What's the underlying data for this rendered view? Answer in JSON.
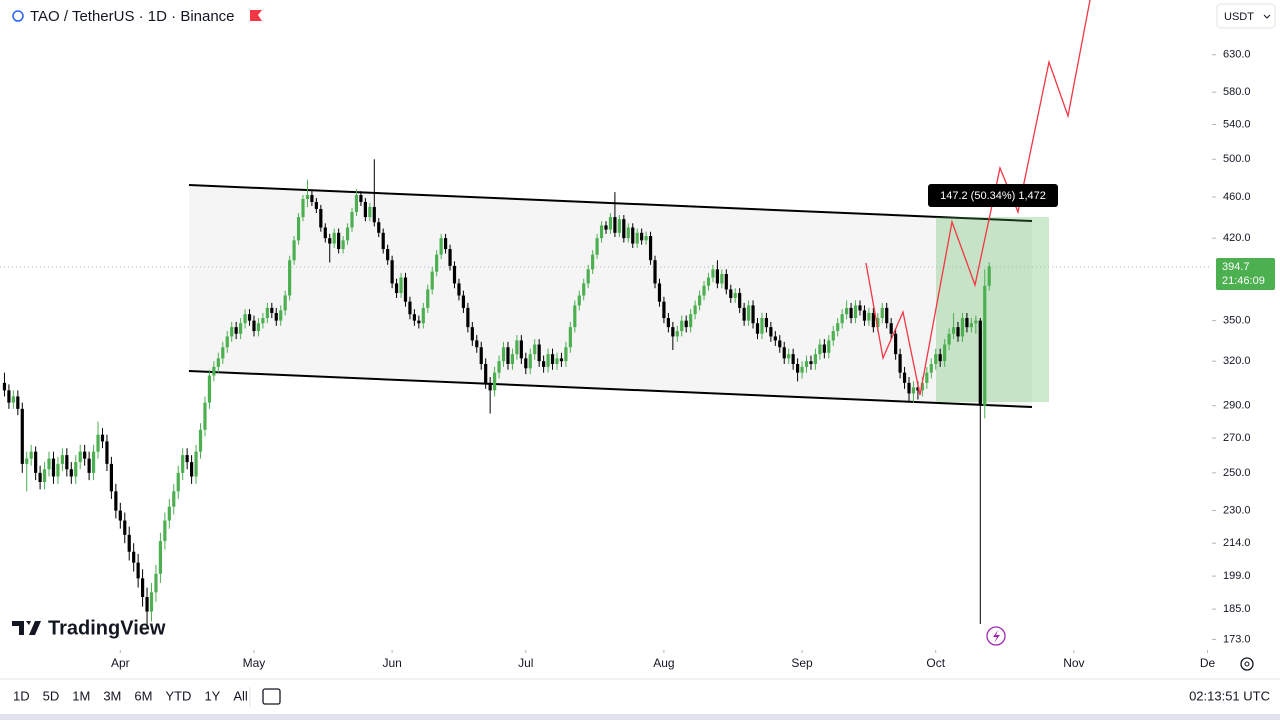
{
  "ui": {
    "symbol": "TAO / TetherUS · 1D · Binance",
    "currency": "USDT",
    "logo": "TradingView",
    "timeframes": [
      "1D",
      "5D",
      "1M",
      "3M",
      "6M",
      "YTD",
      "1Y",
      "All"
    ],
    "clock": "02:13:51 UTC",
    "measure_label": "147.2 (50.34%) 1,472"
  },
  "chart_data": {
    "type": "candlestick",
    "log_scale": true,
    "up_color": "#4caf50",
    "down_color": "#000000",
    "countdown": "21:46:09",
    "xlim": [
      -1,
      271
    ],
    "xticks": [
      {
        "value": 26,
        "label": "Apr"
      },
      {
        "value": 56,
        "label": "May"
      },
      {
        "value": 87,
        "label": "Jun"
      },
      {
        "value": 117,
        "label": "Jul"
      },
      {
        "value": 148,
        "label": "Aug"
      },
      {
        "value": 179,
        "label": "Sep"
      },
      {
        "value": 209,
        "label": "Oct"
      },
      {
        "value": 240,
        "label": "Nov"
      },
      {
        "value": 270,
        "label": "De"
      }
    ],
    "ylim": [
      169,
      711
    ],
    "yticks": [
      {
        "value": 630,
        "label": "630.0"
      },
      {
        "value": 580,
        "label": "580.0"
      },
      {
        "value": 540,
        "label": "540.0"
      },
      {
        "value": 500,
        "label": "500.0"
      },
      {
        "value": 460,
        "label": "460.0"
      },
      {
        "value": 420,
        "label": "420.0"
      },
      {
        "value": 350,
        "label": "350.0"
      },
      {
        "value": 320,
        "label": "320.0"
      },
      {
        "value": 290,
        "label": "290.0"
      },
      {
        "value": 270,
        "label": "270.0"
      },
      {
        "value": 250,
        "label": "250.0"
      },
      {
        "value": 230,
        "label": "230.0"
      },
      {
        "value": 214,
        "label": "214.0"
      },
      {
        "value": 199,
        "label": "199.0"
      },
      {
        "value": 185,
        "label": "185.0"
      },
      {
        "value": 173,
        "label": "173.0"
      }
    ],
    "candles": [
      [
        305,
        312,
        296,
        300
      ],
      [
        300,
        304,
        288,
        292
      ],
      [
        292,
        300,
        288,
        296
      ],
      [
        296,
        300,
        284,
        288
      ],
      [
        288,
        292,
        250,
        255
      ],
      [
        255,
        262,
        240,
        258
      ],
      [
        258,
        266,
        254,
        262
      ],
      [
        262,
        265,
        246,
        250
      ],
      [
        250,
        254,
        241,
        245
      ],
      [
        245,
        256,
        241,
        252
      ],
      [
        252,
        262,
        248,
        258
      ],
      [
        258,
        262,
        244,
        248
      ],
      [
        248,
        259,
        244,
        255
      ],
      [
        255,
        264,
        251,
        260
      ],
      [
        260,
        264,
        248,
        252
      ],
      [
        252,
        256,
        244,
        248
      ],
      [
        248,
        260,
        244,
        256
      ],
      [
        256,
        266,
        252,
        262
      ],
      [
        262,
        266,
        254,
        258
      ],
      [
        258,
        262,
        246,
        250
      ],
      [
        250,
        266,
        246,
        262
      ],
      [
        262,
        280,
        258,
        272
      ],
      [
        272,
        276,
        264,
        268
      ],
      [
        268,
        272,
        251,
        255
      ],
      [
        255,
        259,
        236,
        240
      ],
      [
        240,
        244,
        226,
        230
      ],
      [
        230,
        234,
        221,
        225
      ],
      [
        225,
        229,
        214,
        218
      ],
      [
        218,
        222,
        206,
        210
      ],
      [
        210,
        214,
        201,
        205
      ],
      [
        205,
        209,
        194,
        198
      ],
      [
        198,
        202,
        186,
        190
      ],
      [
        190,
        194,
        178,
        184
      ],
      [
        184,
        196,
        180,
        192
      ],
      [
        192,
        204,
        188,
        200
      ],
      [
        200,
        219,
        196,
        215
      ],
      [
        215,
        229,
        211,
        225
      ],
      [
        225,
        236,
        221,
        232
      ],
      [
        232,
        244,
        228,
        240
      ],
      [
        240,
        254,
        236,
        250
      ],
      [
        250,
        264,
        246,
        260
      ],
      [
        260,
        264,
        252,
        256
      ],
      [
        256,
        260,
        244,
        248
      ],
      [
        248,
        266,
        244,
        262
      ],
      [
        262,
        279,
        258,
        275
      ],
      [
        275,
        296,
        271,
        292
      ],
      [
        292,
        314,
        288,
        310
      ],
      [
        310,
        320,
        306,
        316
      ],
      [
        316,
        326,
        312,
        322
      ],
      [
        322,
        334,
        318,
        330
      ],
      [
        330,
        342,
        326,
        338
      ],
      [
        338,
        349,
        334,
        345
      ],
      [
        345,
        349,
        336,
        340
      ],
      [
        340,
        352,
        336,
        348
      ],
      [
        348,
        359,
        344,
        355
      ],
      [
        355,
        359,
        346,
        350
      ],
      [
        350,
        354,
        338,
        342
      ],
      [
        342,
        352,
        338,
        348
      ],
      [
        348,
        356,
        344,
        352
      ],
      [
        352,
        364,
        348,
        360
      ],
      [
        360,
        364,
        352,
        356
      ],
      [
        356,
        360,
        346,
        350
      ],
      [
        350,
        362,
        346,
        358
      ],
      [
        358,
        374,
        354,
        370
      ],
      [
        370,
        404,
        366,
        400
      ],
      [
        400,
        422,
        396,
        418
      ],
      [
        418,
        444,
        414,
        440
      ],
      [
        440,
        462,
        436,
        458
      ],
      [
        458,
        478,
        450,
        462
      ],
      [
        462,
        466,
        451,
        455
      ],
      [
        455,
        459,
        444,
        448
      ],
      [
        448,
        452,
        426,
        430
      ],
      [
        430,
        434,
        416,
        420
      ],
      [
        420,
        424,
        398,
        415
      ],
      [
        415,
        429,
        411,
        425
      ],
      [
        425,
        429,
        406,
        410
      ],
      [
        410,
        422,
        406,
        418
      ],
      [
        418,
        434,
        414,
        430
      ],
      [
        430,
        449,
        426,
        445
      ],
      [
        445,
        468,
        441,
        462
      ],
      [
        462,
        466,
        451,
        455
      ],
      [
        455,
        459,
        436,
        440
      ],
      [
        440,
        454,
        436,
        450
      ],
      [
        450,
        500,
        431,
        435
      ],
      [
        435,
        439,
        421,
        425
      ],
      [
        425,
        429,
        406,
        410
      ],
      [
        410,
        414,
        396,
        400
      ],
      [
        400,
        404,
        376,
        380
      ],
      [
        380,
        384,
        368,
        372
      ],
      [
        372,
        389,
        368,
        385
      ],
      [
        385,
        389,
        361,
        365
      ],
      [
        365,
        369,
        351,
        355
      ],
      [
        355,
        359,
        346,
        350
      ],
      [
        350,
        354,
        344,
        348
      ],
      [
        348,
        364,
        344,
        360
      ],
      [
        360,
        379,
        356,
        375
      ],
      [
        375,
        394,
        371,
        390
      ],
      [
        390,
        409,
        386,
        405
      ],
      [
        405,
        424,
        401,
        420
      ],
      [
        420,
        424,
        406,
        410
      ],
      [
        410,
        414,
        391,
        395
      ],
      [
        395,
        399,
        376,
        380
      ],
      [
        380,
        384,
        366,
        370
      ],
      [
        370,
        374,
        356,
        360
      ],
      [
        360,
        364,
        341,
        345
      ],
      [
        345,
        349,
        331,
        335
      ],
      [
        335,
        339,
        326,
        330
      ],
      [
        330,
        334,
        314,
        318
      ],
      [
        318,
        322,
        301,
        305
      ],
      [
        305,
        309,
        285,
        300
      ],
      [
        300,
        316,
        296,
        312
      ],
      [
        312,
        324,
        308,
        320
      ],
      [
        320,
        334,
        316,
        330
      ],
      [
        330,
        334,
        314,
        318
      ],
      [
        318,
        329,
        314,
        325
      ],
      [
        325,
        339,
        321,
        335
      ],
      [
        335,
        339,
        318,
        322
      ],
      [
        322,
        326,
        311,
        315
      ],
      [
        315,
        329,
        311,
        325
      ],
      [
        325,
        336,
        321,
        332
      ],
      [
        332,
        336,
        316,
        320
      ],
      [
        320,
        324,
        312,
        316
      ],
      [
        316,
        329,
        312,
        325
      ],
      [
        325,
        329,
        314,
        318
      ],
      [
        318,
        326,
        314,
        322
      ],
      [
        322,
        326,
        316,
        320
      ],
      [
        320,
        334,
        316,
        330
      ],
      [
        330,
        349,
        326,
        345
      ],
      [
        345,
        366,
        341,
        362
      ],
      [
        362,
        374,
        358,
        370
      ],
      [
        370,
        384,
        366,
        380
      ],
      [
        380,
        396,
        376,
        392
      ],
      [
        392,
        409,
        388,
        405
      ],
      [
        405,
        424,
        401,
        420
      ],
      [
        420,
        436,
        416,
        432
      ],
      [
        432,
        436,
        424,
        428
      ],
      [
        428,
        444,
        424,
        440
      ],
      [
        440,
        465,
        421,
        425
      ],
      [
        425,
        442,
        421,
        438
      ],
      [
        438,
        442,
        416,
        420
      ],
      [
        420,
        434,
        416,
        430
      ],
      [
        430,
        434,
        411,
        415
      ],
      [
        415,
        429,
        411,
        425
      ],
      [
        425,
        429,
        414,
        418
      ],
      [
        418,
        426,
        414,
        422
      ],
      [
        422,
        426,
        396,
        400
      ],
      [
        400,
        404,
        376,
        380
      ],
      [
        380,
        384,
        361,
        365
      ],
      [
        365,
        369,
        348,
        352
      ],
      [
        352,
        356,
        341,
        345
      ],
      [
        345,
        349,
        328,
        338
      ],
      [
        338,
        346,
        334,
        342
      ],
      [
        342,
        354,
        338,
        350
      ],
      [
        350,
        354,
        341,
        345
      ],
      [
        345,
        359,
        341,
        355
      ],
      [
        355,
        366,
        351,
        362
      ],
      [
        362,
        374,
        358,
        370
      ],
      [
        370,
        382,
        366,
        378
      ],
      [
        378,
        389,
        374,
        385
      ],
      [
        385,
        396,
        381,
        392
      ],
      [
        392,
        400,
        376,
        380
      ],
      [
        380,
        392,
        376,
        388
      ],
      [
        388,
        392,
        371,
        375
      ],
      [
        375,
        379,
        364,
        368
      ],
      [
        368,
        376,
        364,
        372
      ],
      [
        372,
        376,
        356,
        360
      ],
      [
        360,
        364,
        346,
        350
      ],
      [
        350,
        366,
        346,
        362
      ],
      [
        362,
        366,
        344,
        348
      ],
      [
        348,
        352,
        336,
        340
      ],
      [
        340,
        356,
        336,
        352
      ],
      [
        352,
        356,
        341,
        345
      ],
      [
        345,
        349,
        334,
        338
      ],
      [
        338,
        342,
        331,
        335
      ],
      [
        335,
        339,
        326,
        330
      ],
      [
        330,
        334,
        318,
        322
      ],
      [
        322,
        329,
        318,
        325
      ],
      [
        325,
        329,
        314,
        318
      ],
      [
        318,
        322,
        306,
        312
      ],
      [
        312,
        320,
        308,
        316
      ],
      [
        316,
        324,
        312,
        320
      ],
      [
        320,
        324,
        314,
        318
      ],
      [
        318,
        329,
        314,
        325
      ],
      [
        325,
        336,
        321,
        332
      ],
      [
        332,
        336,
        322,
        326
      ],
      [
        326,
        339,
        322,
        335
      ],
      [
        335,
        346,
        331,
        342
      ],
      [
        342,
        352,
        338,
        348
      ],
      [
        348,
        359,
        344,
        355
      ],
      [
        355,
        366,
        351,
        360
      ],
      [
        360,
        364,
        348,
        352
      ],
      [
        352,
        366,
        348,
        362
      ],
      [
        362,
        366,
        354,
        358
      ],
      [
        358,
        362,
        346,
        350
      ],
      [
        350,
        360,
        346,
        356
      ],
      [
        356,
        360,
        341,
        345
      ],
      [
        345,
        356,
        341,
        352
      ],
      [
        352,
        364,
        348,
        360
      ],
      [
        360,
        364,
        344,
        348
      ],
      [
        348,
        352,
        336,
        340
      ],
      [
        340,
        344,
        321,
        325
      ],
      [
        325,
        329,
        308,
        312
      ],
      [
        312,
        316,
        301,
        305
      ],
      [
        305,
        309,
        292,
        298
      ],
      [
        298,
        306,
        292,
        302
      ],
      [
        302,
        306,
        294,
        300
      ],
      [
        300,
        309,
        296,
        305
      ],
      [
        305,
        316,
        301,
        312
      ],
      [
        312,
        322,
        308,
        318
      ],
      [
        318,
        329,
        314,
        325
      ],
      [
        325,
        329,
        316,
        320
      ],
      [
        320,
        336,
        316,
        332
      ],
      [
        332,
        344,
        328,
        340
      ],
      [
        340,
        356,
        336,
        345
      ],
      [
        345,
        349,
        334,
        338
      ],
      [
        338,
        356,
        334,
        352
      ],
      [
        352,
        356,
        341,
        345
      ],
      [
        345,
        352,
        341,
        348
      ],
      [
        348,
        354,
        340,
        350
      ],
      [
        350,
        352,
        179,
        290
      ],
      [
        290,
        392,
        282,
        378
      ],
      [
        378,
        398,
        374,
        394.7
      ]
    ]
  }
}
